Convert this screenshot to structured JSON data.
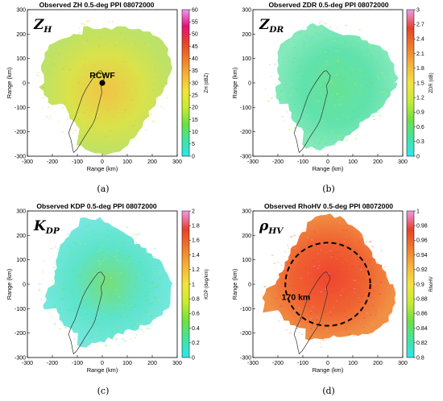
{
  "chart_data": [
    {
      "type": "heatmap",
      "panel": "a",
      "title": "Observed ZH 0.5-deg PPI 08072000",
      "symbol_main": "Z",
      "symbol_sub": "H",
      "caption": "(a)",
      "xlabel": "Range (km)",
      "ylabel": "Range (km)",
      "xlim": [
        -300,
        300
      ],
      "ylim": [
        -300,
        300
      ],
      "xticks": [
        -300,
        -200,
        -100,
        0,
        100,
        200,
        300
      ],
      "yticks": [
        300,
        200,
        100,
        0,
        -100,
        -200,
        -300
      ],
      "colorbar": {
        "label": "ZH (dBZ)",
        "min": 0,
        "max": 60,
        "ticks": [
          60,
          55,
          50,
          45,
          40,
          35,
          30,
          25,
          20,
          15,
          10,
          5,
          0
        ],
        "colors": [
          "#2ee6f0",
          "#3fe6a0",
          "#6fe040",
          "#c8ec30",
          "#f2e43a",
          "#f6b23a",
          "#f07a2a",
          "#e8402a",
          "#e0147a",
          "#f098ee"
        ]
      },
      "field": {
        "center_color": "#f2c03c",
        "mid_color": "#d8e040",
        "edge_color": "#b8e060"
      },
      "marker": {
        "label": "RCWF",
        "x": 0,
        "y": 0
      },
      "echo_radius_km": 290
    },
    {
      "type": "heatmap",
      "panel": "b",
      "title": "Observed ZDR 0.5-deg PPI 08072000",
      "symbol_main": "Z",
      "symbol_sub": "DR",
      "caption": "(b)",
      "xlabel": "Range (km)",
      "ylabel": "Range (km)",
      "xlim": [
        -300,
        300
      ],
      "ylim": [
        -300,
        300
      ],
      "xticks": [
        -300,
        -200,
        -100,
        0,
        100,
        200,
        300
      ],
      "yticks": [
        300,
        200,
        100,
        0,
        -100,
        -200,
        -300
      ],
      "colorbar": {
        "label": "ZDR (dB)",
        "min": 0,
        "max": 3,
        "ticks": [
          3,
          2.7,
          2.4,
          2.1,
          1.8,
          1.5,
          1.2,
          0.9,
          0.6,
          0.3,
          0
        ],
        "colors": [
          "#2ee6f0",
          "#3fe6a0",
          "#6fe040",
          "#c8ec30",
          "#f2e43a",
          "#f6b23a",
          "#f07a2a",
          "#e8402a",
          "#f098ee"
        ]
      },
      "field": {
        "center_color": "#5ee090",
        "mid_color": "#58e0a8",
        "edge_color": "#7ee8b8"
      },
      "echo_radius_km": 275
    },
    {
      "type": "heatmap",
      "panel": "c",
      "title": "Observed KDP 0.5-deg PPI 08072000",
      "symbol_main": "K",
      "symbol_sub": "DP",
      "caption": "(c)",
      "xlabel": "Range (km)",
      "ylabel": "Range (km)",
      "xlim": [
        -300,
        300
      ],
      "ylim": [
        -300,
        300
      ],
      "xticks": [
        -300,
        -200,
        -100,
        0,
        100,
        200,
        300
      ],
      "yticks": [
        300,
        200,
        100,
        0,
        -100,
        -200,
        -300
      ],
      "colorbar": {
        "label": "KDP (deg/km)",
        "min": 0,
        "max": 2,
        "ticks": [
          2,
          1.8,
          1.6,
          1.4,
          1.2,
          1,
          0.8,
          0.6,
          0.4,
          0.2,
          0
        ],
        "colors": [
          "#2ee6f0",
          "#3fe6a0",
          "#6fe040",
          "#c8ec30",
          "#f2e43a",
          "#f6b23a",
          "#f07a2a",
          "#e8402a",
          "#f098ee"
        ]
      },
      "field": {
        "center_color": "#70dc70",
        "mid_color": "#54e2c8",
        "edge_color": "#6ee6dc"
      },
      "echo_radius_km": 280
    },
    {
      "type": "heatmap",
      "panel": "d",
      "title": "Observed RhoHV 0.5-deg PPI 08072000",
      "symbol_main": "ρ",
      "symbol_sub": "HV",
      "caption": "(d)",
      "xlabel": "Range (km)",
      "ylabel": "Range (km)",
      "xlim": [
        -300,
        300
      ],
      "ylim": [
        -300,
        300
      ],
      "xticks": [
        -300,
        -200,
        -100,
        0,
        100,
        200,
        300
      ],
      "yticks": [
        300,
        200,
        100,
        0,
        -100,
        -200,
        -300
      ],
      "colorbar": {
        "label": "RhoHV",
        "min": 0.8,
        "max": 1,
        "ticks": [
          1,
          0.98,
          0.96,
          0.94,
          0.92,
          0.9,
          0.88,
          0.86,
          0.84,
          0.82,
          0.8
        ],
        "colors": [
          "#2ee6f0",
          "#3fe6a0",
          "#6fe040",
          "#c8ec30",
          "#f2e43a",
          "#f6b23a",
          "#f07a2a",
          "#e8402a",
          "#f098ee"
        ]
      },
      "field": {
        "center_color": "#f03a24",
        "mid_color": "#ee5a26",
        "edge_color": "#f08a3a"
      },
      "ring": {
        "radius_km": 170,
        "label": "170 km"
      },
      "echo_radius_km": 280
    }
  ]
}
